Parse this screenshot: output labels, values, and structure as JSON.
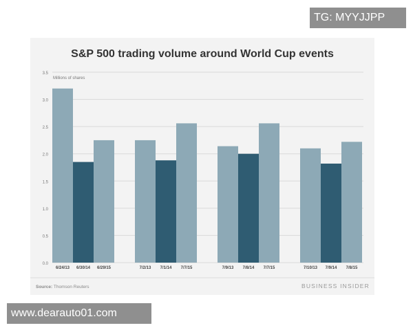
{
  "watermark_top": "TG: MYYJJPP",
  "watermark_bottom": "www.dearauto01.com",
  "source_label": "Source:",
  "source_text": "Thomson Reuters",
  "brand": "BUSINESS INSIDER",
  "colors": {
    "light_bar": "#8da9b6",
    "dark_bar": "#2f5c72",
    "card_bg": "#f3f3f3",
    "grid": "#d9d9d9",
    "text": "#444444"
  },
  "chart_data": {
    "type": "bar",
    "title": "S&P 500 trading volume around World Cup events",
    "ylabel": "Millions of shares",
    "ylim": [
      0,
      3.5
    ],
    "yticks": [
      "0.0",
      "0.5",
      "1.0",
      "1.5",
      "2.0",
      "2.5",
      "3.0",
      "3.5"
    ],
    "grid": true,
    "groups": [
      {
        "bars": [
          {
            "label": "6/24/13",
            "value": 3.2,
            "shade": "light"
          },
          {
            "label": "6/30/14",
            "value": 1.85,
            "shade": "dark"
          },
          {
            "label": "6/29/15",
            "value": 2.25,
            "shade": "light"
          }
        ]
      },
      {
        "bars": [
          {
            "label": "7/2/13",
            "value": 2.25,
            "shade": "light"
          },
          {
            "label": "7/1/14",
            "value": 1.88,
            "shade": "dark"
          },
          {
            "label": "7/7/15",
            "value": 2.56,
            "shade": "light"
          }
        ]
      },
      {
        "bars": [
          {
            "label": "7/9/13",
            "value": 2.14,
            "shade": "light"
          },
          {
            "label": "7/8/14",
            "value": 2.0,
            "shade": "dark"
          },
          {
            "label": "7/7/15",
            "value": 2.56,
            "shade": "light"
          }
        ]
      },
      {
        "bars": [
          {
            "label": "7/10/13",
            "value": 2.1,
            "shade": "light"
          },
          {
            "label": "7/9/14",
            "value": 1.82,
            "shade": "dark"
          },
          {
            "label": "7/8/15",
            "value": 2.22,
            "shade": "light"
          }
        ]
      }
    ]
  }
}
